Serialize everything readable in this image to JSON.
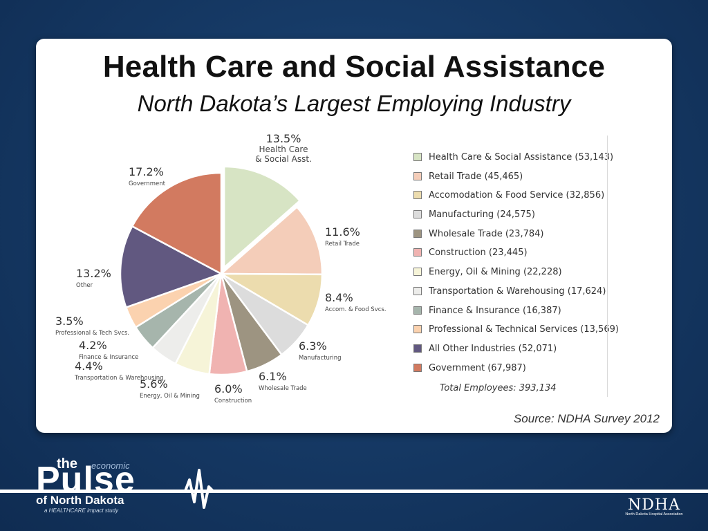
{
  "slide": {
    "title": "Health Care and Social Assistance",
    "subtitle": "North Dakota’s Largest Employing Industry",
    "source": "Source: NDHA Survey 2012"
  },
  "chart_data": {
    "type": "pie",
    "start_angle_deg": 0,
    "direction": "clockwise",
    "slices": [
      {
        "pct": 13.5,
        "pct_label": "13.5%",
        "label": [
          "Health Care",
          "& Social Asst."
        ],
        "color": "#d7e4c4",
        "exploded": true
      },
      {
        "pct": 11.6,
        "pct_label": "11.6%",
        "label": [
          "Retail Trade"
        ],
        "color": "#f4cdb9"
      },
      {
        "pct": 8.4,
        "pct_label": "8.4%",
        "label": [
          "Accom. & Food Svcs."
        ],
        "color": "#ecdcae"
      },
      {
        "pct": 6.3,
        "pct_label": "6.3%",
        "label": [
          "Manufacturing"
        ],
        "color": "#dcdcdc"
      },
      {
        "pct": 6.1,
        "pct_label": "6.1%",
        "label": [
          "Wholesale Trade"
        ],
        "color": "#9d9481"
      },
      {
        "pct": 6.0,
        "pct_label": "6.0%",
        "label": [
          "Construction"
        ],
        "color": "#f0b3b1"
      },
      {
        "pct": 5.6,
        "pct_label": "5.6%",
        "label": [
          "Energy, Oil & Mining"
        ],
        "color": "#f6f4d8"
      },
      {
        "pct": 4.4,
        "pct_label": "4.4%",
        "label": [
          "Transportation & Warehousing"
        ],
        "color": "#ededeb"
      },
      {
        "pct": 4.2,
        "pct_label": "4.2%",
        "label": [
          "Finance & Insurance"
        ],
        "color": "#a6b5ac"
      },
      {
        "pct": 3.5,
        "pct_label": "3.5%",
        "label": [
          "Professional & Tech Svcs."
        ],
        "color": "#fbd2af"
      },
      {
        "pct": 13.2,
        "pct_label": "13.2%",
        "label": [
          "Other"
        ],
        "color": "#615880"
      },
      {
        "pct": 17.2,
        "pct_label": "17.2%",
        "label": [
          "Government"
        ],
        "color": "#d27a60"
      }
    ],
    "legend": [
      "Health Care & Social Assistance (53,143)",
      "Retail Trade (45,465)",
      "Accomodation & Food Service (32,856)",
      "Manufacturing (24,575)",
      "Wholesale Trade (23,784)",
      "Construction (23,445)",
      "Energy, Oil & Mining (22,228)",
      "Transportation & Warehousing (17,624)",
      "Finance & Insurance (16,387)",
      "Professional & Technical Services (13,569)",
      "All Other Industries (52,071)",
      "Government (67,987)"
    ],
    "legend_colors": [
      "#d7e4c4",
      "#f4cdb9",
      "#ecdcae",
      "#dcdcdc",
      "#9d9481",
      "#f0b3b1",
      "#f6f4d8",
      "#ededeb",
      "#a6b5ac",
      "#fbd2af",
      "#615880",
      "#d27a60"
    ],
    "total": "Total Employees: 393,134"
  },
  "branding": {
    "logo_the": "the",
    "logo_economic": "economic",
    "logo_pulse": "Pulse",
    "logo_region": "of North Dakota",
    "logo_tagline": "a HEALTHCARE impact study",
    "ndha_mark": "NDHA",
    "ndha_name": "North Dakota Hospital Association"
  }
}
